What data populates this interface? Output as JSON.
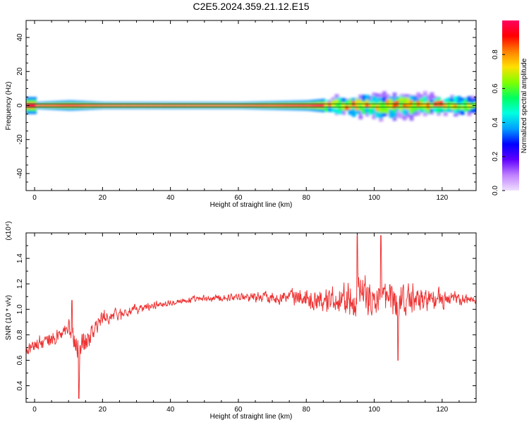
{
  "title": "C2E5.2024.359.21.12.E15",
  "chart_data": [
    {
      "type": "heatmap",
      "xlabel": "Height of straight line (km)",
      "ylabel": "Frequency (Hz)",
      "xlim": [
        -2.5,
        130
      ],
      "ylim": [
        -50,
        50
      ],
      "xticks": [
        0,
        20,
        40,
        60,
        80,
        100,
        120
      ],
      "yticks": [
        -40,
        -20,
        0,
        20,
        40
      ],
      "description": "Spectral signal concentrated near 0 Hz; narrow (about +/-2 Hz) below 85 km, widening to about +/-6 Hz above 90 km",
      "band_center_hz": 0,
      "band_halfwidth_hz": [
        {
          "x": 0,
          "w": 2
        },
        {
          "x": 10,
          "w": 3
        },
        {
          "x": 20,
          "w": 2
        },
        {
          "x": 40,
          "w": 2
        },
        {
          "x": 60,
          "w": 2
        },
        {
          "x": 80,
          "w": 3
        },
        {
          "x": 90,
          "w": 5
        },
        {
          "x": 100,
          "w": 6
        },
        {
          "x": 110,
          "w": 6
        },
        {
          "x": 120,
          "w": 5
        },
        {
          "x": 130,
          "w": 5
        }
      ],
      "colorbar": {
        "label": "Normalized spectral amplitude",
        "range": [
          0,
          1
        ],
        "ticks": [
          0.0,
          0.2,
          0.4,
          0.6,
          0.8
        ],
        "colors": [
          "#f0e0ff",
          "#c080ff",
          "#6000ff",
          "#0000ff",
          "#00a0ff",
          "#00ffe0",
          "#00ff60",
          "#80ff00",
          "#ffe000",
          "#ff8000",
          "#ff0000",
          "#ff0060"
        ]
      }
    },
    {
      "type": "line",
      "xlabel": "Height of straight line (km)",
      "ylabel": "SNR (10 * v/v)",
      "scale_label": "(x10⁴)",
      "xlim": [
        -2.5,
        130
      ],
      "ylim": [
        0.27,
        1.6
      ],
      "xticks": [
        0,
        20,
        40,
        60,
        80,
        100,
        120
      ],
      "yticks": [
        0.4,
        0.6,
        0.8,
        1.0,
        1.2,
        1.4
      ],
      "color": "#ee3333",
      "envelope": [
        {
          "x": -2.5,
          "mean": 0.68,
          "amp": 0.09
        },
        {
          "x": 0,
          "mean": 0.72,
          "amp": 0.09
        },
        {
          "x": 5,
          "mean": 0.76,
          "amp": 0.1
        },
        {
          "x": 10,
          "mean": 0.84,
          "amp": 0.13
        },
        {
          "x": 13,
          "mean": 0.7,
          "amp": 0.2
        },
        {
          "x": 20,
          "mean": 0.93,
          "amp": 0.1
        },
        {
          "x": 30,
          "mean": 1.0,
          "amp": 0.06
        },
        {
          "x": 40,
          "mean": 1.06,
          "amp": 0.04
        },
        {
          "x": 60,
          "mean": 1.1,
          "amp": 0.05
        },
        {
          "x": 75,
          "mean": 1.1,
          "amp": 0.09
        },
        {
          "x": 85,
          "mean": 1.08,
          "amp": 0.16
        },
        {
          "x": 95,
          "mean": 1.1,
          "amp": 0.24
        },
        {
          "x": 105,
          "mean": 1.08,
          "amp": 0.25
        },
        {
          "x": 115,
          "mean": 1.08,
          "amp": 0.16
        },
        {
          "x": 125,
          "mean": 1.08,
          "amp": 0.08
        },
        {
          "x": 130,
          "mean": 1.08,
          "amp": 0.06
        }
      ],
      "notable_points": [
        {
          "x": 13,
          "y": 0.3
        },
        {
          "x": 11,
          "y": 1.07
        },
        {
          "x": 95,
          "y": 1.58
        },
        {
          "x": 102,
          "y": 1.58
        },
        {
          "x": 107,
          "y": 0.6
        }
      ]
    }
  ]
}
